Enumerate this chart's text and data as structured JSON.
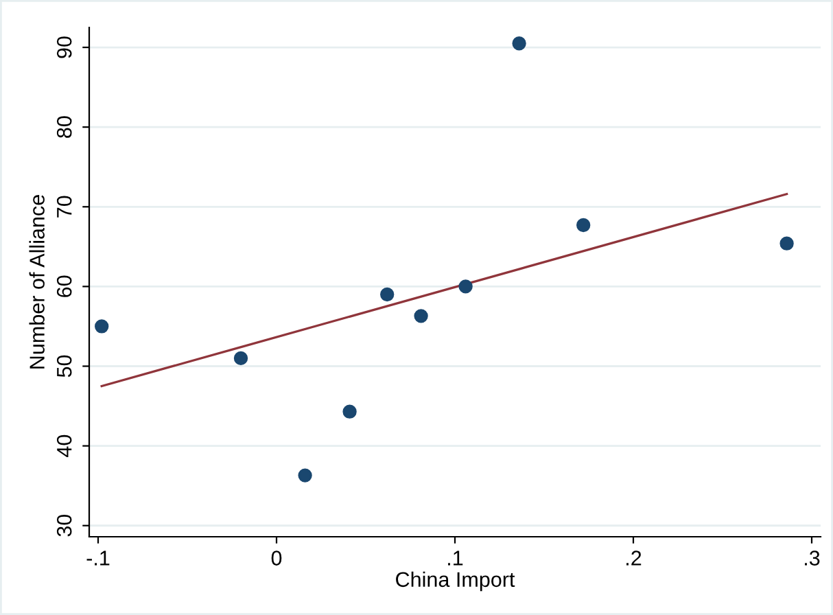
{
  "chart_data": {
    "type": "scatter",
    "xlabel": "China Import",
    "ylabel": "Number of Alliance",
    "x": [
      -0.098,
      -0.02,
      0.016,
      0.041,
      0.062,
      0.081,
      0.106,
      0.136,
      0.172,
      0.286
    ],
    "series": [
      {
        "color": "#1a476f",
        "marker": "circle",
        "values": [
          55,
          51,
          36.3,
          44.3,
          59,
          56.3,
          60,
          90.5,
          67.7,
          65.4
        ]
      },
      {
        "type": "line",
        "color": "#90353b",
        "x": [
          -0.098,
          0.286
        ],
        "values": [
          47.5,
          71.6
        ]
      }
    ],
    "xlim": [
      -0.105,
      0.305
    ],
    "ylim": [
      28.6,
      92.5
    ],
    "xticks": [
      {
        "value": -0.1,
        "label": "-.1"
      },
      0,
      {
        "value": 0.1,
        "label": ".1"
      },
      {
        "value": 0.2,
        "label": ".2"
      },
      {
        "value": 0.3,
        "label": ".3"
      }
    ],
    "yticks": [
      30,
      40,
      50,
      60,
      70,
      80,
      90
    ],
    "grid": "y",
    "legend": false
  }
}
